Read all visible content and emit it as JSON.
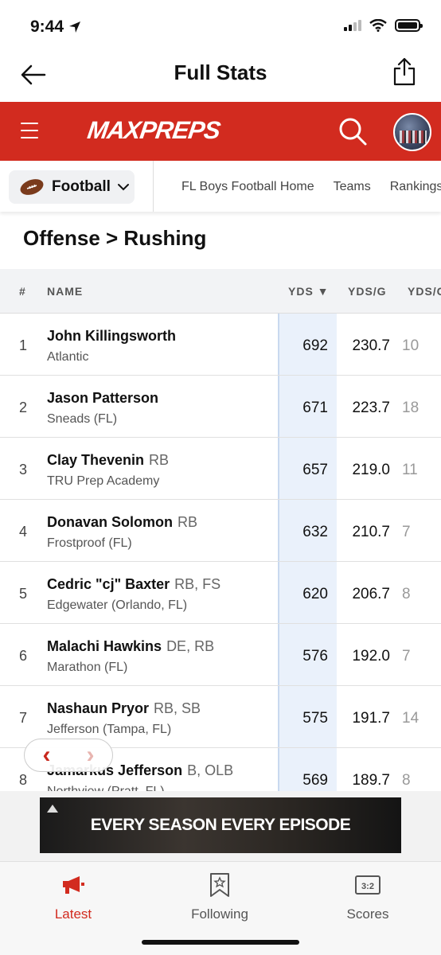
{
  "status": {
    "time": "9:44"
  },
  "header": {
    "title": "Full Stats"
  },
  "brand": {
    "logo": "MAXPREPS",
    "color": "#d22b1f"
  },
  "sport_nav": {
    "sport": "Football",
    "links": [
      "FL Boys Football Home",
      "Teams",
      "Rankings"
    ]
  },
  "section": {
    "title": "Offense > Rushing"
  },
  "table": {
    "columns": [
      "#",
      "NAME",
      "YDS ▼",
      "YDS/G",
      "YDS/C"
    ],
    "rows": [
      {
        "rank": "1",
        "name": "John Killingsworth",
        "pos": "",
        "school": "Atlantic",
        "yds": "692",
        "ydsg": "230.7",
        "ydsc": "10"
      },
      {
        "rank": "2",
        "name": "Jason Patterson",
        "pos": "",
        "school": "Sneads (FL)",
        "yds": "671",
        "ydsg": "223.7",
        "ydsc": "18"
      },
      {
        "rank": "3",
        "name": "Clay Thevenin",
        "pos": "RB",
        "school": "TRU Prep Academy",
        "yds": "657",
        "ydsg": "219.0",
        "ydsc": "11"
      },
      {
        "rank": "4",
        "name": "Donavan Solomon",
        "pos": "RB",
        "school": "Frostproof (FL)",
        "yds": "632",
        "ydsg": "210.7",
        "ydsc": "7"
      },
      {
        "rank": "5",
        "name": "Cedric \"cj\" Baxter",
        "pos": "RB, FS",
        "school": "Edgewater (Orlando, FL)",
        "yds": "620",
        "ydsg": "206.7",
        "ydsc": "8"
      },
      {
        "rank": "6",
        "name": "Malachi Hawkins",
        "pos": "DE, RB",
        "school": "Marathon (FL)",
        "yds": "576",
        "ydsg": "192.0",
        "ydsc": "7"
      },
      {
        "rank": "7",
        "name": "Nashaun Pryor",
        "pos": "RB, SB",
        "school": "Jefferson (Tampa, FL)",
        "yds": "575",
        "ydsg": "191.7",
        "ydsc": "14"
      },
      {
        "rank": "8",
        "name": "Jamarkus Jefferson",
        "pos": "B, OLB",
        "school": "Northview (Pratt, FL)",
        "yds": "569",
        "ydsg": "189.7",
        "ydsc": "8"
      }
    ]
  },
  "ad": {
    "text": "EVERY SEASON EVERY EPISODE"
  },
  "tabs": [
    {
      "label": "Latest",
      "icon": "megaphone-icon",
      "active": true
    },
    {
      "label": "Following",
      "icon": "bookmark-star-icon",
      "active": false
    },
    {
      "label": "Scores",
      "icon": "scoreboard-icon",
      "active": false
    }
  ],
  "colors": {
    "accent": "#d22b1f",
    "highlight_col": "#eaf1fb"
  }
}
